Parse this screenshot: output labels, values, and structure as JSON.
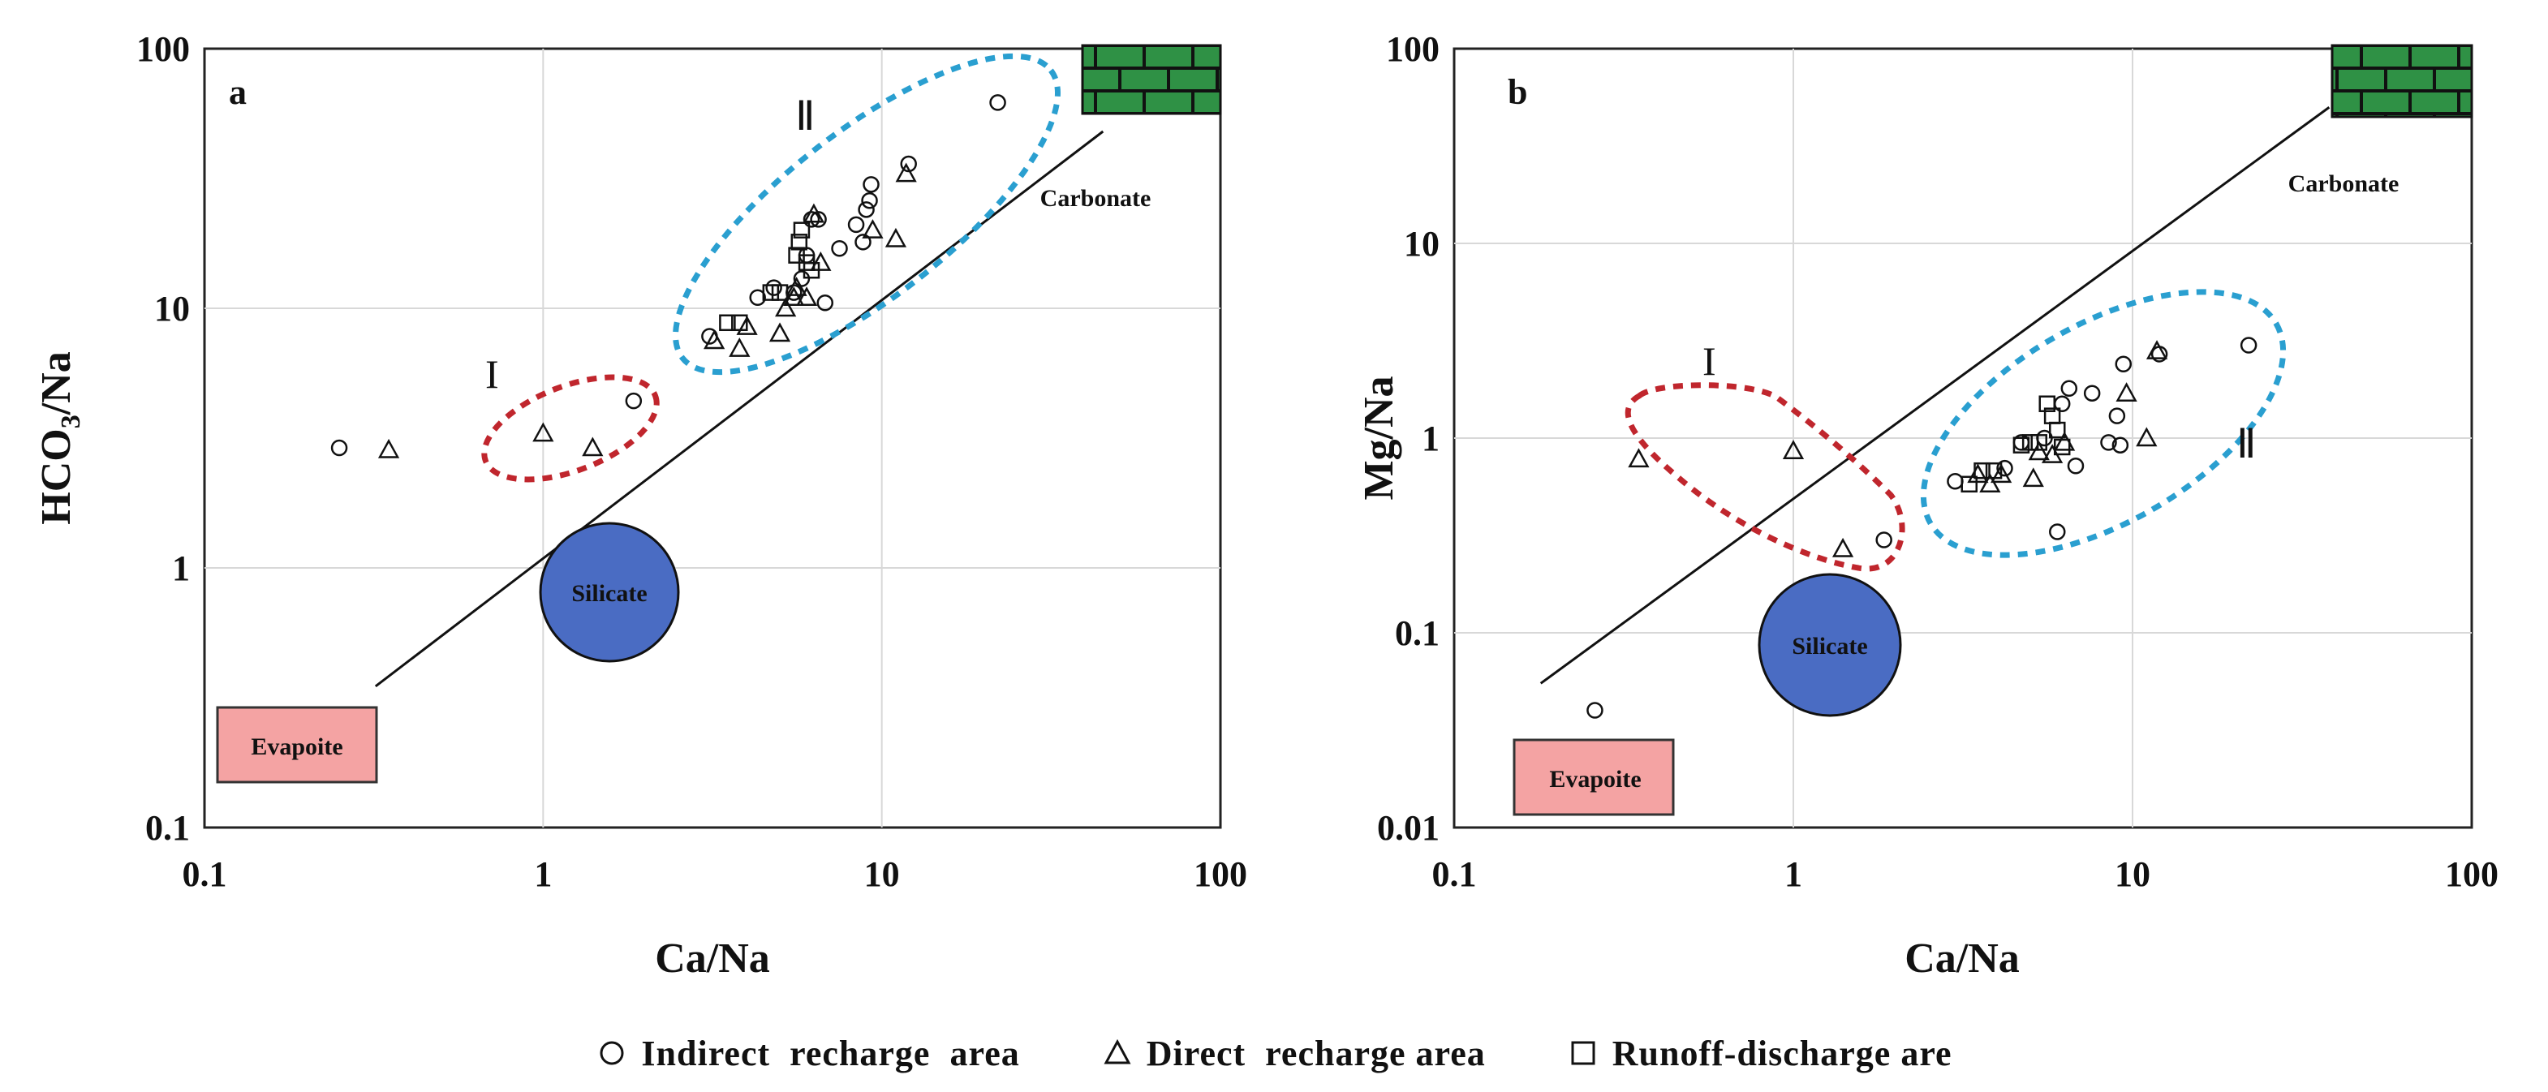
{
  "chart_data": [
    {
      "panel": "a",
      "type": "scatter",
      "xscale": "log",
      "yscale": "log",
      "xlim": [
        0.1,
        100
      ],
      "ylim": [
        0.1,
        100
      ],
      "xlabel": "Ca/Na",
      "ylabel_main": "HCO",
      "ylabel_sub": "3",
      "ylabel_tail": "/Na",
      "xticks": [
        "0.1",
        "1",
        "10",
        "100"
      ],
      "yticks": [
        "0.1",
        "1",
        "10",
        "100"
      ],
      "zones": [
        {
          "label": "I",
          "color": "#c0262d"
        },
        {
          "label": "Ⅱ",
          "color": "#2a9fd0"
        }
      ],
      "regions": {
        "silicate": "Silicate",
        "evaporite": "Evapoite",
        "carbonate": "Carbonate"
      },
      "series": [
        {
          "name": "Indirect recharge area",
          "marker": "circle",
          "points": [
            [
              0.25,
              2.9
            ],
            [
              1.85,
              4.4
            ],
            [
              3.1,
              7.8
            ],
            [
              4.3,
              11
            ],
            [
              4.8,
              12
            ],
            [
              5.5,
              11.5
            ],
            [
              5.8,
              13
            ],
            [
              6.0,
              16
            ],
            [
              6.2,
              22
            ],
            [
              6.5,
              22
            ],
            [
              6.8,
              10.5
            ],
            [
              7.5,
              17
            ],
            [
              8.4,
              21
            ],
            [
              8.8,
              18
            ],
            [
              9,
              24
            ],
            [
              9.2,
              26
            ],
            [
              9.3,
              30
            ],
            [
              12,
              36
            ],
            [
              22,
              62
            ]
          ]
        },
        {
          "name": "Direct recharge area",
          "marker": "triangle",
          "points": [
            [
              0.35,
              2.85
            ],
            [
              1.0,
              3.3
            ],
            [
              1.4,
              2.9
            ],
            [
              3.2,
              7.5
            ],
            [
              3.8,
              7
            ],
            [
              4.0,
              8.5
            ],
            [
              5.0,
              8
            ],
            [
              5.2,
              10
            ],
            [
              5.5,
              11
            ],
            [
              5.6,
              12
            ],
            [
              6.0,
              11
            ],
            [
              6.3,
              23
            ],
            [
              6.6,
              15
            ],
            [
              9.4,
              20
            ],
            [
              11,
              18.5
            ],
            [
              11.8,
              33
            ]
          ]
        },
        {
          "name": "Runoff-discharge are",
          "marker": "square",
          "points": [
            [
              3.5,
              8.8
            ],
            [
              3.8,
              8.8
            ],
            [
              4.7,
              11.5
            ],
            [
              5.0,
              11.5
            ],
            [
              5.6,
              16
            ],
            [
              5.7,
              18
            ],
            [
              5.8,
              20
            ],
            [
              6.0,
              15
            ],
            [
              6.2,
              14
            ]
          ]
        }
      ]
    },
    {
      "panel": "b",
      "type": "scatter",
      "xscale": "log",
      "yscale": "log",
      "xlim": [
        0.1,
        100
      ],
      "ylim": [
        0.01,
        100
      ],
      "xlabel": "Ca/Na",
      "ylabel": "Mg/Na",
      "xticks": [
        "0.1",
        "1",
        "10",
        "100"
      ],
      "yticks": [
        "0.01",
        "0.1",
        "1",
        "10",
        "100"
      ],
      "zones": [
        {
          "label": "I",
          "color": "#c0262d"
        },
        {
          "label": "Ⅱ",
          "color": "#2a9fd0"
        }
      ],
      "regions": {
        "silicate": "Silicate",
        "evaporite": "Evapoite",
        "carbonate": "Carbonate"
      },
      "series": [
        {
          "name": "Indirect recharge area",
          "marker": "circle",
          "points": [
            [
              0.26,
              0.04
            ],
            [
              1.85,
              0.3
            ],
            [
              3.0,
              0.6
            ],
            [
              4.2,
              0.7
            ],
            [
              4.7,
              0.95
            ],
            [
              5.5,
              1.0
            ],
            [
              6.0,
              0.33
            ],
            [
              6.2,
              1.5
            ],
            [
              6.5,
              1.8
            ],
            [
              6.8,
              0.72
            ],
            [
              7.6,
              1.7
            ],
            [
              8.5,
              0.95
            ],
            [
              9.0,
              1.3
            ],
            [
              9.2,
              0.92
            ],
            [
              9.4,
              2.4
            ],
            [
              12,
              2.7
            ],
            [
              22,
              3.0
            ]
          ]
        },
        {
          "name": "Direct recharge area",
          "marker": "triangle",
          "points": [
            [
              0.35,
              0.78
            ],
            [
              1.0,
              0.86
            ],
            [
              1.4,
              0.27
            ],
            [
              3.5,
              0.65
            ],
            [
              3.8,
              0.58
            ],
            [
              4.1,
              0.65
            ],
            [
              5.1,
              0.62
            ],
            [
              5.3,
              0.85
            ],
            [
              5.8,
              0.82
            ],
            [
              6.3,
              0.95
            ],
            [
              9.6,
              1.7
            ],
            [
              11,
              1.0
            ],
            [
              11.8,
              2.8
            ]
          ]
        },
        {
          "name": "Runoff-discharge are",
          "marker": "square",
          "points": [
            [
              3.3,
              0.58
            ],
            [
              3.6,
              0.68
            ],
            [
              3.9,
              0.68
            ],
            [
              4.7,
              0.92
            ],
            [
              5.0,
              0.95
            ],
            [
              5.3,
              0.95
            ],
            [
              5.6,
              1.5
            ],
            [
              5.8,
              1.3
            ],
            [
              6.0,
              1.1
            ],
            [
              6.2,
              0.9
            ]
          ]
        }
      ]
    }
  ],
  "legend": [
    {
      "marker": "circle",
      "label": "Indirect  recharge  area"
    },
    {
      "marker": "triangle",
      "label": "Direct  recharge area"
    },
    {
      "marker": "square",
      "label": "Runoff-discharge are"
    }
  ]
}
